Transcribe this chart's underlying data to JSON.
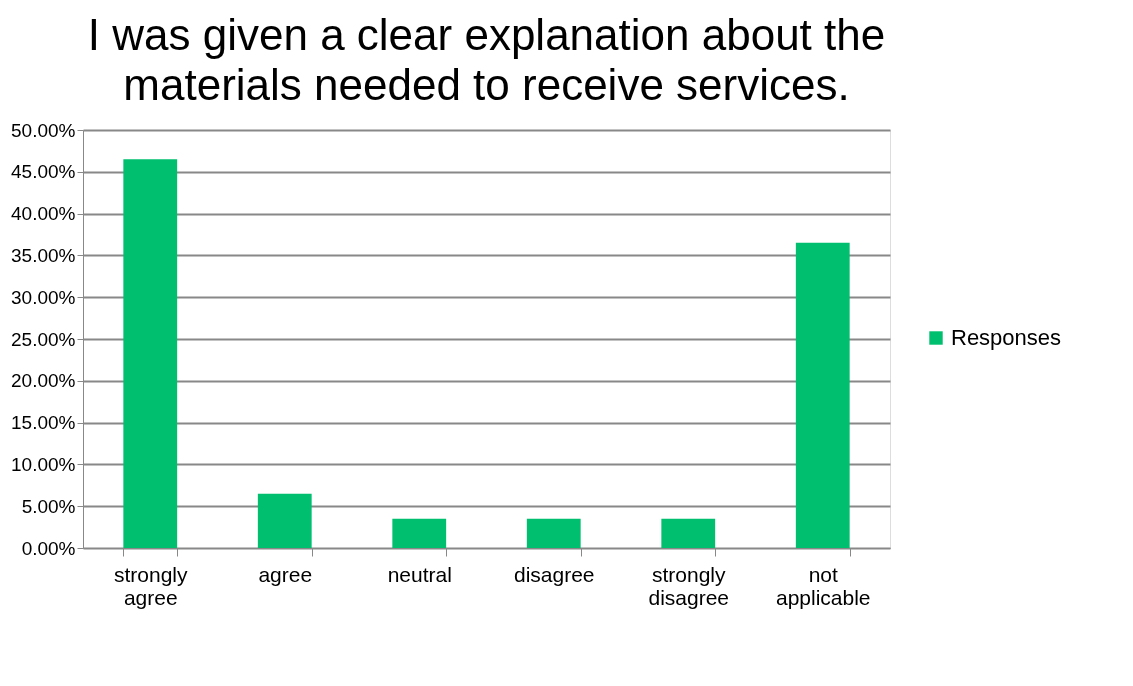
{
  "chart_data": {
    "type": "bar",
    "title": "I was given a clear explanation about the materials needed to receive services.",
    "categories": [
      "strongly agree",
      "agree",
      "neutral",
      "disagree",
      "strongly disagree",
      "not applicable"
    ],
    "series": [
      {
        "name": "Responses",
        "color": "#00bf6f",
        "values": [
          46.5,
          6.5,
          3.5,
          3.5,
          3.5,
          36.5
        ]
      }
    ],
    "ylim": [
      0,
      50
    ],
    "yticks": [
      {
        "value": 0,
        "label": "0.00%"
      },
      {
        "value": 5,
        "label": "5.00%"
      },
      {
        "value": 10,
        "label": "10.00%"
      },
      {
        "value": 15,
        "label": "15.00%"
      },
      {
        "value": 20,
        "label": "20.00%"
      },
      {
        "value": 25,
        "label": "25.00%"
      },
      {
        "value": 30,
        "label": "30.00%"
      },
      {
        "value": 35,
        "label": "35.00%"
      },
      {
        "value": 40,
        "label": "40.00%"
      },
      {
        "value": 45,
        "label": "45.00%"
      },
      {
        "value": 50,
        "label": "50.00%"
      }
    ],
    "grid": "y",
    "legend": "right"
  }
}
